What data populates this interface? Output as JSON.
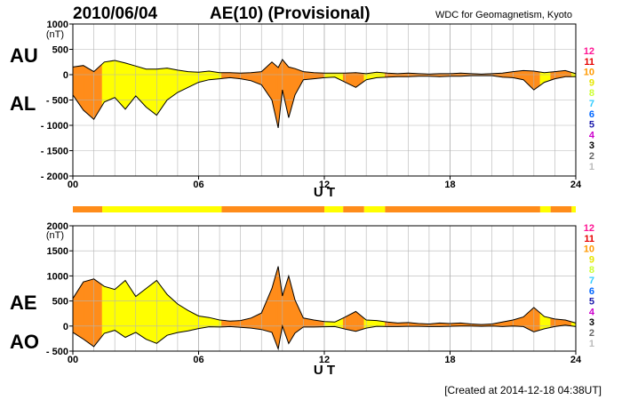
{
  "header": {
    "date": "2010/06/04",
    "title": "AE(10) (Provisional)",
    "source": "WDC for Geomagnetism, Kyoto"
  },
  "footer": {
    "created": "[Created at 2014-12-18 04:38UT]"
  },
  "colors": {
    "activity_high": "#ff8c1a",
    "activity_low": "#ffff00",
    "grid": "#b4b4b4",
    "line": "#000000"
  },
  "activity_scale": {
    "labels": [
      "12",
      "11",
      "10",
      "9",
      "8",
      "7",
      "6",
      "5",
      "4",
      "3",
      "2",
      "1"
    ],
    "colors": [
      "#ff1493",
      "#e60000",
      "#ff9900",
      "#e6e600",
      "#ccff33",
      "#33ccff",
      "#0066ff",
      "#1a1aaa",
      "#cc00cc",
      "#000000",
      "#666666",
      "#bbbbbb"
    ]
  },
  "activity_bar": {
    "segments": [
      {
        "start": 0,
        "end": 1.4,
        "level": 10
      },
      {
        "start": 1.4,
        "end": 7.1,
        "level": 9
      },
      {
        "start": 7.1,
        "end": 12.0,
        "level": 10
      },
      {
        "start": 12.0,
        "end": 12.9,
        "level": 9
      },
      {
        "start": 12.9,
        "end": 13.9,
        "level": 10
      },
      {
        "start": 13.9,
        "end": 14.9,
        "level": 9
      },
      {
        "start": 14.9,
        "end": 22.3,
        "level": 10
      },
      {
        "start": 22.3,
        "end": 22.8,
        "level": 9
      },
      {
        "start": 22.8,
        "end": 23.8,
        "level": 10
      },
      {
        "start": 23.8,
        "end": 24,
        "level": 9
      }
    ]
  },
  "chart_data": [
    {
      "type": "area",
      "name": "AU/AL",
      "labels": [
        "AU",
        "AL"
      ],
      "unit": "(nT)",
      "xlabel": "U T",
      "xlim": [
        0,
        24
      ],
      "ylim": [
        -2000,
        1000
      ],
      "yticks": [
        1000,
        500,
        0,
        -500,
        -1000,
        -1500,
        -2000
      ],
      "ytick_labels": [
        "1000",
        "500",
        "0",
        "- 500",
        "- 1000",
        "- 1500",
        "- 2000"
      ],
      "xticks": [
        0,
        6,
        12,
        18,
        24
      ],
      "xtick_labels": [
        "00",
        "06",
        "12",
        "18",
        "24"
      ],
      "grid": true,
      "series": [
        {
          "name": "AU",
          "x": [
            0,
            0.5,
            1,
            1.5,
            2,
            2.5,
            3,
            3.5,
            4,
            4.5,
            5,
            5.5,
            6,
            6.5,
            7,
            7.5,
            8,
            8.5,
            9,
            9.5,
            9.8,
            10,
            10.3,
            10.6,
            11,
            11.5,
            12,
            12.5,
            13,
            13.5,
            14,
            14.5,
            15,
            15.5,
            16,
            16.5,
            17,
            17.5,
            18,
            18.5,
            19,
            19.5,
            20,
            20.5,
            21,
            21.5,
            22,
            22.5,
            23,
            23.5,
            24
          ],
          "values": [
            150,
            180,
            60,
            250,
            280,
            230,
            170,
            110,
            110,
            130,
            90,
            60,
            50,
            70,
            40,
            40,
            30,
            40,
            60,
            250,
            140,
            300,
            150,
            120,
            60,
            40,
            30,
            30,
            30,
            40,
            20,
            50,
            30,
            20,
            30,
            20,
            10,
            20,
            20,
            30,
            20,
            10,
            20,
            30,
            60,
            80,
            70,
            40,
            60,
            80,
            20
          ]
        },
        {
          "name": "AL",
          "x": [
            0,
            0.5,
            1,
            1.5,
            2,
            2.5,
            3,
            3.5,
            4,
            4.5,
            5,
            5.5,
            6,
            6.5,
            7,
            7.5,
            8,
            8.5,
            9,
            9.5,
            9.8,
            10,
            10.3,
            10.6,
            11,
            11.5,
            12,
            12.5,
            13,
            13.5,
            14,
            14.5,
            15,
            15.5,
            16,
            16.5,
            17,
            17.5,
            18,
            18.5,
            19,
            19.5,
            20,
            20.5,
            21,
            21.5,
            22,
            22.5,
            23,
            23.5,
            24
          ],
          "values": [
            -400,
            -700,
            -880,
            -540,
            -450,
            -680,
            -420,
            -640,
            -800,
            -500,
            -350,
            -250,
            -150,
            -100,
            -80,
            -60,
            -80,
            -120,
            -200,
            -500,
            -1050,
            -300,
            -850,
            -400,
            -100,
            -80,
            -60,
            -50,
            -150,
            -250,
            -100,
            -60,
            -50,
            -40,
            -40,
            -30,
            -30,
            -40,
            -30,
            -30,
            -20,
            -20,
            -20,
            -50,
            -60,
            -100,
            -300,
            -150,
            -80,
            -40,
            -40
          ]
        }
      ]
    },
    {
      "type": "area",
      "name": "AE/AO",
      "labels": [
        "AE",
        "AO"
      ],
      "unit": "(nT)",
      "xlabel": "U T",
      "xlim": [
        0,
        24
      ],
      "ylim": [
        -500,
        2000
      ],
      "yticks": [
        2000,
        1500,
        1000,
        500,
        0,
        -500
      ],
      "ytick_labels": [
        "2000",
        "1500",
        "1000",
        "500",
        "0",
        "- 500"
      ],
      "xticks": [
        0,
        6,
        12,
        18,
        24
      ],
      "xtick_labels": [
        "00",
        "06",
        "12",
        "18",
        "24"
      ],
      "grid": true,
      "series": [
        {
          "name": "AE",
          "x": [
            0,
            0.5,
            1,
            1.5,
            2,
            2.5,
            3,
            3.5,
            4,
            4.5,
            5,
            5.5,
            6,
            6.5,
            7,
            7.5,
            8,
            8.5,
            9,
            9.5,
            9.8,
            10,
            10.3,
            10.6,
            11,
            11.5,
            12,
            12.5,
            13,
            13.5,
            14,
            14.5,
            15,
            15.5,
            16,
            16.5,
            17,
            17.5,
            18,
            18.5,
            19,
            19.5,
            20,
            20.5,
            21,
            21.5,
            22,
            22.5,
            23,
            23.5,
            24
          ],
          "values": [
            550,
            880,
            940,
            790,
            730,
            910,
            590,
            750,
            910,
            630,
            440,
            310,
            200,
            170,
            120,
            100,
            110,
            160,
            260,
            750,
            1190,
            600,
            1000,
            520,
            160,
            120,
            90,
            80,
            180,
            290,
            120,
            110,
            80,
            60,
            70,
            50,
            40,
            60,
            50,
            60,
            40,
            30,
            40,
            80,
            120,
            180,
            370,
            190,
            140,
            120,
            60
          ]
        },
        {
          "name": "AO",
          "x": [
            0,
            0.5,
            1,
            1.5,
            2,
            2.5,
            3,
            3.5,
            4,
            4.5,
            5,
            5.5,
            6,
            6.5,
            7,
            7.5,
            8,
            8.5,
            9,
            9.5,
            9.8,
            10,
            10.3,
            10.6,
            11,
            11.5,
            12,
            12.5,
            13,
            13.5,
            14,
            14.5,
            15,
            15.5,
            16,
            16.5,
            17,
            17.5,
            18,
            18.5,
            19,
            19.5,
            20,
            20.5,
            21,
            21.5,
            22,
            22.5,
            23,
            23.5,
            24
          ],
          "values": [
            -125,
            -260,
            -410,
            -145,
            -85,
            -225,
            -125,
            -265,
            -345,
            -185,
            -130,
            -95,
            -50,
            -15,
            -20,
            -10,
            -25,
            -40,
            -70,
            -125,
            -455,
            0,
            -350,
            -140,
            -20,
            -20,
            -15,
            -10,
            -60,
            -105,
            -40,
            -5,
            -10,
            -10,
            -5,
            -5,
            -10,
            -10,
            -5,
            0,
            0,
            -5,
            0,
            -10,
            0,
            -10,
            -115,
            -55,
            -10,
            20,
            -10
          ]
        }
      ]
    }
  ]
}
